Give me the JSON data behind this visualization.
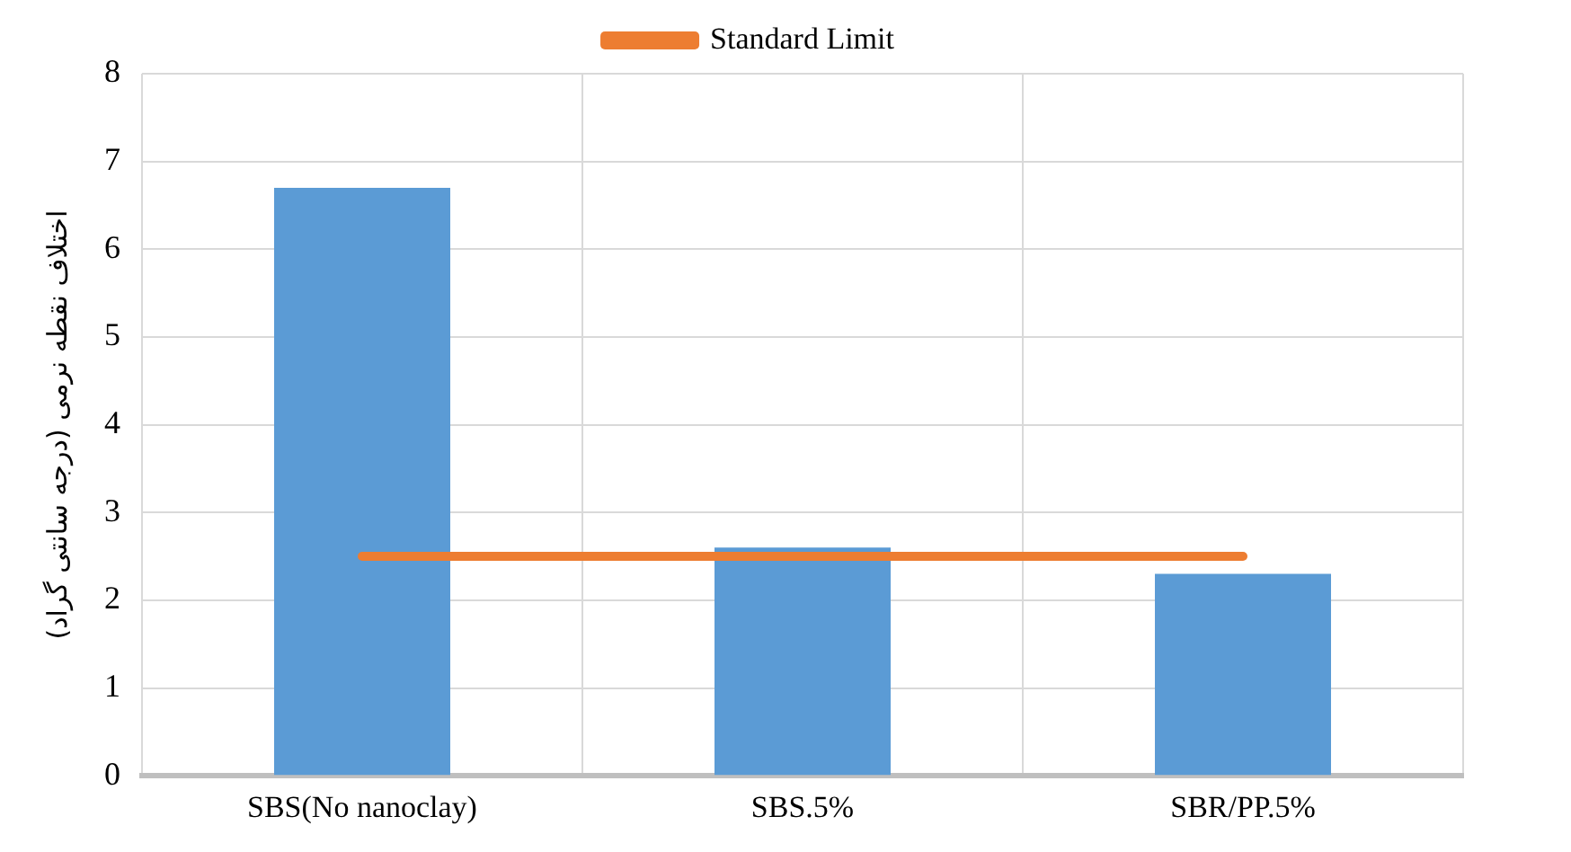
{
  "chart_data": {
    "type": "bar",
    "ylabel": "اختلاف نقطه نرمی (درجه سانتی گراد)",
    "categories": [
      "SBS(No nanoclay)",
      "SBS.5%",
      "SBR/PP.5%"
    ],
    "series": [
      {
        "color": "#5b9bd5",
        "values": [
          6.7,
          2.6,
          2.3
        ]
      },
      {
        "type": "line",
        "name": "Standard Limit",
        "color": "#ed7d31",
        "values": [
          2.5,
          2.5,
          2.5
        ]
      }
    ],
    "ylim": [
      0,
      8
    ],
    "yticks": [
      0,
      1,
      2,
      3,
      4,
      5,
      6,
      7,
      8
    ],
    "grid": true,
    "legend": "top",
    "marker": "none",
    "line_style": "solid"
  }
}
